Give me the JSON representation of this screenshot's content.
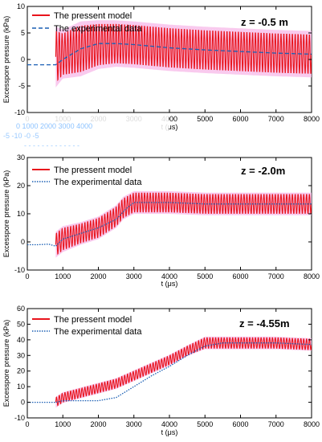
{
  "chart_data": [
    {
      "type": "line",
      "annotation": "z = -0.5 m",
      "xlabel": "t (μs)",
      "ylabel": "Excesspore pressure (kPa)",
      "xlim": [
        0,
        8000
      ],
      "ylim": [
        -10,
        10
      ],
      "xticks": [
        0,
        1000,
        2000,
        3000,
        4000,
        5000,
        6000,
        7000,
        8000
      ],
      "yticks": [
        -10,
        -5,
        0,
        5,
        10
      ],
      "grid": false,
      "legend_position": "top-left",
      "series": [
        {
          "name": "The pressent model",
          "style": "oscillating",
          "color": "#e8141c",
          "band_color": "#f7b8e8",
          "start_x": 800,
          "x": [
            800,
            1000,
            1500,
            2000,
            2500,
            3000,
            4000,
            5000,
            6000,
            7000,
            8000
          ],
          "center": [
            0.5,
            1,
            2,
            2.8,
            3,
            2.8,
            2.2,
            1.8,
            1.5,
            1.2,
            1
          ],
          "amplitude": [
            5,
            4,
            4.5,
            4,
            3.8,
            3.8,
            3.8,
            3.8,
            3.8,
            3.8,
            3.8
          ]
        },
        {
          "name": "The experimental data",
          "style": "dashed",
          "color": "#1a5fb4",
          "x": [
            0,
            400,
            800,
            900,
            1000,
            1500,
            2000,
            2500,
            3000,
            4000,
            5000,
            6000,
            7000,
            8000
          ],
          "y": [
            -1,
            -1,
            -1,
            -0.5,
            0,
            2,
            3,
            3,
            2.8,
            2.2,
            1.8,
            1.5,
            1.2,
            1
          ]
        }
      ]
    },
    {
      "type": "line",
      "annotation": "z = -2.0m",
      "xlabel": "t (μs)",
      "ylabel": "Excesspore pressure (kPa)",
      "xlim": [
        0,
        8000
      ],
      "ylim": [
        -10,
        30
      ],
      "xticks": [
        0,
        1000,
        2000,
        3000,
        4000,
        5000,
        6000,
        7000,
        8000
      ],
      "yticks": [
        -10,
        0,
        10,
        20,
        30
      ],
      "grid": false,
      "legend_position": "top-left",
      "series": [
        {
          "name": "The pressent model",
          "style": "oscillating",
          "color": "#e8141c",
          "band_color": "#f7b8e8",
          "start_x": 800,
          "x": [
            800,
            1000,
            1500,
            2000,
            2500,
            2700,
            3000,
            3500,
            4000,
            5000,
            6000,
            7000,
            8000
          ],
          "center": [
            -1,
            1,
            3,
            5,
            9,
            12,
            14,
            14,
            14,
            13.5,
            13.5,
            13.5,
            13.5
          ],
          "amplitude": [
            4,
            4,
            3.5,
            3.5,
            3.5,
            3.5,
            3.5,
            3.5,
            3.5,
            3.5,
            3.5,
            3.5,
            3.5
          ]
        },
        {
          "name": "The experimental data",
          "style": "dotted",
          "color": "#1a5fb4",
          "x": [
            0,
            300,
            600,
            800,
            1000,
            1500,
            2000,
            2500,
            2800,
            3000,
            4000,
            5000,
            6000,
            7000,
            8000
          ],
          "y": [
            -1,
            -1,
            -0.8,
            -1.5,
            1,
            3,
            5,
            8,
            12,
            14,
            14,
            13.5,
            13.5,
            13.5,
            13.5
          ]
        }
      ]
    },
    {
      "type": "line",
      "annotation": "z = -4.55m",
      "xlabel": "t (μs)",
      "ylabel": "Excesspore pressure (kPa)",
      "xlim": [
        0,
        8000
      ],
      "ylim": [
        -10,
        60
      ],
      "xticks": [
        0,
        1000,
        2000,
        3000,
        4000,
        5000,
        6000,
        7000,
        8000
      ],
      "yticks": [
        -10,
        0,
        10,
        20,
        30,
        40,
        50,
        60
      ],
      "grid": false,
      "legend_position": "top-left",
      "series": [
        {
          "name": "The pressent model",
          "style": "oscillating",
          "color": "#e8141c",
          "band_color": "#f7b8e8",
          "start_x": 800,
          "x": [
            800,
            1000,
            1500,
            2000,
            2500,
            3000,
            3500,
            4000,
            4500,
            5000,
            5500,
            6000,
            7000,
            8000
          ],
          "center": [
            0,
            3,
            6,
            9,
            12,
            17,
            22,
            27,
            33,
            38,
            38,
            38,
            38,
            37
          ],
          "amplitude": [
            3,
            3,
            3,
            3,
            3,
            3,
            3,
            3,
            3,
            3.5,
            3.5,
            3.5,
            3.5,
            3.5
          ]
        },
        {
          "name": "The experimental data",
          "style": "dotted",
          "color": "#1a5fb4",
          "x": [
            0,
            500,
            800,
            1000,
            1500,
            2000,
            2500,
            3000,
            3500,
            4000,
            4500,
            5000,
            5500,
            6000,
            7000,
            8000
          ],
          "y": [
            0,
            0,
            0,
            1,
            1,
            1,
            3,
            10,
            17,
            23,
            30,
            36,
            38,
            38,
            38,
            37
          ]
        }
      ]
    }
  ],
  "overlay_artifact": {
    "segments": [
      "0 1000 2000 3000 4000",
      "-5 -10 -0 -5",
      "- - - - - - - - - - - - -"
    ]
  }
}
